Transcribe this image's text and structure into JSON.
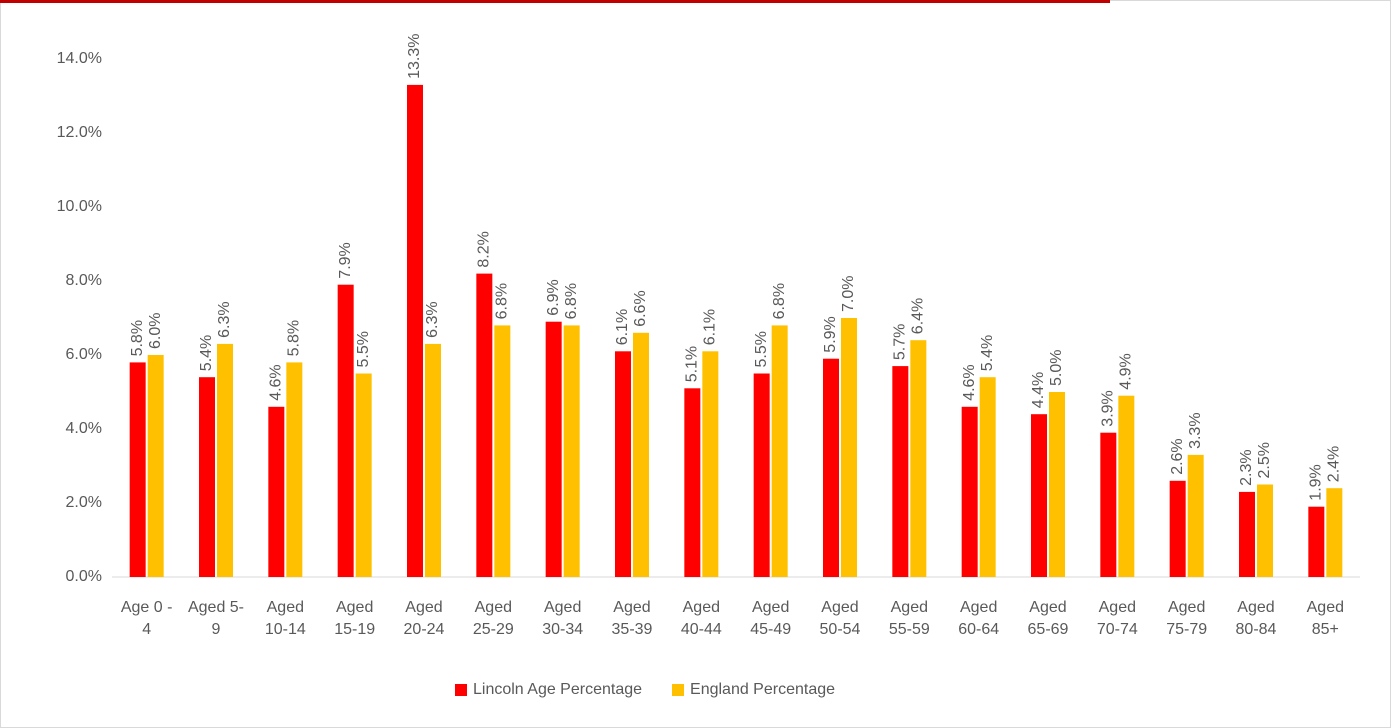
{
  "chart_data": {
    "type": "bar",
    "categories": [
      "Age 0 - 4",
      "Aged 5-9",
      "Aged 10-14",
      "Aged 15-19",
      "Aged 20-24",
      "Aged 25-29",
      "Aged 30-34",
      "Aged 35-39",
      "Aged 40-44",
      "Aged 45-49",
      "Aged 50-54",
      "Aged 55-59",
      "Aged 60-64",
      "Aged 65-69",
      "Aged 70-74",
      "Aged 75-79",
      "Aged 80-84",
      "Aged 85+"
    ],
    "series": [
      {
        "name": "Lincoln Age Percentage",
        "color": "#ff0000",
        "values": [
          5.8,
          5.4,
          4.6,
          7.9,
          13.3,
          8.2,
          6.9,
          6.1,
          5.1,
          5.5,
          5.9,
          5.7,
          4.6,
          4.4,
          3.9,
          2.6,
          2.3,
          1.9
        ],
        "value_labels": [
          "5.8%",
          "5.4%",
          "4.6%",
          "7.9%",
          "13.3%",
          "8.2%",
          "6.9%",
          "6.1%",
          "5.1%",
          "5.5%",
          "5.9%",
          "5.7%",
          "4.6%",
          "4.4%",
          "3.9%",
          "2.6%",
          "2.3%",
          "1.9%"
        ]
      },
      {
        "name": "England Percentage",
        "color": "#ffc000",
        "values": [
          6.0,
          6.3,
          5.8,
          5.5,
          6.3,
          6.8,
          6.8,
          6.6,
          6.1,
          6.8,
          7.0,
          6.4,
          5.4,
          5.0,
          4.9,
          3.3,
          2.5,
          2.4
        ],
        "value_labels": [
          "6.0%",
          "6.3%",
          "5.8%",
          "5.5%",
          "6.3%",
          "6.8%",
          "6.8%",
          "6.6%",
          "6.1%",
          "6.8%",
          "7.0%",
          "6.4%",
          "5.4%",
          "5.0%",
          "4.9%",
          "3.3%",
          "2.5%",
          "2.4%"
        ]
      }
    ],
    "ylim": [
      0,
      15
    ],
    "yticks": [
      {
        "value": 0,
        "label": "0.0%"
      },
      {
        "value": 2,
        "label": "2.0%"
      },
      {
        "value": 4,
        "label": "4.0%"
      },
      {
        "value": 6,
        "label": "6.0%"
      },
      {
        "value": 8,
        "label": "8.0%"
      },
      {
        "value": 10,
        "label": "10.0%"
      },
      {
        "value": 12,
        "label": "12.0%"
      },
      {
        "value": 14,
        "label": "14.0%"
      }
    ],
    "grid": false,
    "legend": "bottom"
  }
}
